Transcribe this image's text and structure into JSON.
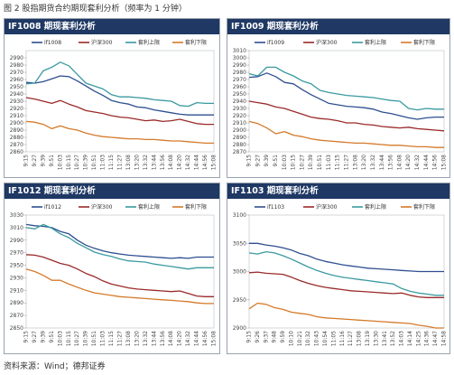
{
  "caption": "图 2 股指期货合约期现套利分析（频率为 1 分钟）",
  "source": "资料来源：Wind；德邦证券",
  "colors": {
    "contract": "#2e4f8f",
    "hs300": "#9a2a2a",
    "upper": "#3a9aa0",
    "lower": "#d47a2a",
    "header": "#1f3864"
  },
  "time_labels": [
    "9:15",
    "9:27",
    "9:39",
    "9:51",
    "10:03",
    "10:15",
    "10:27",
    "10:39",
    "10:51",
    "11:03",
    "11:15",
    "11:27",
    "13:08",
    "13:20",
    "13:32",
    "13:44",
    "13:56",
    "14:08",
    "14:20",
    "14:32",
    "14:44",
    "14:56",
    "15:08"
  ],
  "chart_data": [
    {
      "type": "line",
      "title": "IF1008 期现套利分析",
      "ylim": [
        2860,
        3000
      ],
      "yticks": [
        2860,
        2870,
        2880,
        2890,
        2900,
        2910,
        2920,
        2930,
        2940,
        2950,
        2960,
        2970,
        2980,
        2990
      ],
      "xlabels": [
        "9:15",
        "9:27",
        "9:39",
        "9:51",
        "10:03",
        "10:15",
        "10:27",
        "10:39",
        "10:51",
        "11:03",
        "11:15",
        "11:27",
        "13:08",
        "13:20",
        "13:32",
        "13:44",
        "13:56",
        "14:08",
        "14:20",
        "14:32",
        "14:44",
        "14:56",
        "15:08"
      ],
      "legend": [
        "if1008",
        "沪深300",
        "套利上限",
        "套利下限"
      ],
      "series": [
        {
          "name": "if1008",
          "values": [
            2956,
            2955,
            2957,
            2961,
            2965,
            2964,
            2958,
            2951,
            2944,
            2938,
            2931,
            2928,
            2926,
            2922,
            2921,
            2918,
            2916,
            2914,
            2912,
            2911,
            2911,
            2911,
            2911
          ]
        },
        {
          "name": "沪深300",
          "values": [
            2935,
            2933,
            2930,
            2927,
            2931,
            2926,
            2922,
            2917,
            2915,
            2913,
            2910,
            2908,
            2907,
            2905,
            2903,
            2904,
            2902,
            2903,
            2905,
            2902,
            2899,
            2898,
            2898
          ]
        },
        {
          "name": "套利上限",
          "values": [
            2954,
            2955,
            2972,
            2977,
            2984,
            2979,
            2967,
            2955,
            2951,
            2947,
            2939,
            2936,
            2936,
            2935,
            2934,
            2932,
            2931,
            2930,
            2924,
            2923,
            2928,
            2927,
            2927
          ]
        },
        {
          "name": "套利下限",
          "values": [
            2902,
            2901,
            2898,
            2892,
            2896,
            2892,
            2890,
            2886,
            2883,
            2881,
            2880,
            2879,
            2878,
            2878,
            2877,
            2877,
            2876,
            2875,
            2875,
            2874,
            2873,
            2872,
            2872
          ]
        }
      ]
    },
    {
      "type": "line",
      "title": "IF1009 期现套利分析",
      "ylim": [
        2870,
        3010
      ],
      "yticks": [
        2870,
        2880,
        2890,
        2900,
        2910,
        2920,
        2930,
        2940,
        2950,
        2960,
        2970,
        2980,
        2990,
        3000,
        3010
      ],
      "xlabels": [
        "9:15",
        "9:27",
        "9:39",
        "9:51",
        "10:03",
        "10:15",
        "10:27",
        "10:39",
        "10:51",
        "11:03",
        "11:15",
        "11:27",
        "13:08",
        "13:20",
        "13:32",
        "13:44",
        "13:56",
        "14:08",
        "14:20",
        "14:32",
        "14:44",
        "14:56",
        "15:08"
      ],
      "legend": [
        "if1009",
        "沪深300",
        "套利上限",
        "套利下限"
      ],
      "series": [
        {
          "name": "if1009",
          "values": [
            2973,
            2974,
            2979,
            2974,
            2966,
            2964,
            2956,
            2949,
            2943,
            2937,
            2935,
            2933,
            2932,
            2931,
            2929,
            2925,
            2923,
            2920,
            2917,
            2915,
            2917,
            2918,
            2918
          ]
        },
        {
          "name": "沪深300",
          "values": [
            2940,
            2938,
            2936,
            2932,
            2930,
            2926,
            2922,
            2918,
            2916,
            2915,
            2913,
            2910,
            2910,
            2908,
            2907,
            2905,
            2904,
            2903,
            2904,
            2902,
            2901,
            2900,
            2899
          ]
        },
        {
          "name": "套利上限",
          "values": [
            2978,
            2975,
            2987,
            2987,
            2980,
            2975,
            2968,
            2964,
            2955,
            2952,
            2950,
            2948,
            2947,
            2946,
            2945,
            2943,
            2941,
            2940,
            2930,
            2928,
            2930,
            2929,
            2929
          ]
        },
        {
          "name": "套利下限",
          "values": [
            2912,
            2909,
            2903,
            2895,
            2898,
            2893,
            2891,
            2888,
            2886,
            2885,
            2884,
            2883,
            2882,
            2882,
            2881,
            2880,
            2879,
            2879,
            2878,
            2877,
            2877,
            2876,
            2876
          ]
        }
      ]
    },
    {
      "type": "line",
      "title": "IF1012 期现套利分析",
      "ylim": [
        2850,
        3030
      ],
      "yticks": [
        2850,
        2870,
        2890,
        2910,
        2930,
        2950,
        2970,
        2990,
        3010,
        3030
      ],
      "xlabels": [
        "9:15",
        "9:27",
        "9:39",
        "9:51",
        "10:03",
        "10:15",
        "10:27",
        "10:39",
        "10:51",
        "11:03",
        "11:15",
        "11:27",
        "13:08",
        "13:20",
        "13:32",
        "13:44",
        "13:56",
        "14:08",
        "14:20",
        "14:32",
        "14:44",
        "14:56",
        "15:08"
      ],
      "legend": [
        "if1012",
        "沪深300",
        "套利上限",
        "套利下限"
      ],
      "series": [
        {
          "name": "if1012",
          "values": [
            3015,
            3013,
            3012,
            3010,
            3004,
            3000,
            2990,
            2982,
            2977,
            2973,
            2970,
            2968,
            2966,
            2965,
            2964,
            2963,
            2962,
            2961,
            2962,
            2961,
            2963,
            2963,
            2963
          ]
        },
        {
          "name": "沪深300",
          "values": [
            2967,
            2966,
            2963,
            2958,
            2953,
            2950,
            2944,
            2937,
            2932,
            2925,
            2920,
            2917,
            2914,
            2912,
            2911,
            2910,
            2909,
            2908,
            2909,
            2905,
            2901,
            2900,
            2900
          ]
        },
        {
          "name": "套利上限",
          "values": [
            3010,
            3008,
            3015,
            3009,
            3000,
            2994,
            2985,
            2978,
            2971,
            2967,
            2964,
            2960,
            2957,
            2956,
            2955,
            2952,
            2950,
            2948,
            2946,
            2944,
            2946,
            2946,
            2946
          ]
        },
        {
          "name": "套利下限",
          "values": [
            2944,
            2940,
            2934,
            2926,
            2926,
            2920,
            2915,
            2910,
            2906,
            2904,
            2902,
            2900,
            2899,
            2898,
            2897,
            2896,
            2895,
            2894,
            2893,
            2892,
            2890,
            2889,
            2889
          ]
        }
      ]
    },
    {
      "type": "line",
      "title": "IF1103 期现套利分析",
      "ylim": [
        2900,
        3100
      ],
      "yticks": [
        2900,
        2950,
        3000,
        3050,
        3100
      ],
      "xlabels": [
        "9:15",
        "9:26",
        "9:37",
        "9:48",
        "9:59",
        "10:10",
        "10:21",
        "10:32",
        "10:43",
        "10:54",
        "11:05",
        "11:16",
        "11:27",
        "13:08",
        "13:19",
        "13:30",
        "13:41",
        "13:52",
        "14:03",
        "14:14",
        "14:25",
        "14:36",
        "14:47",
        "14:58"
      ],
      "legend": [
        "if1103",
        "沪深300",
        "套利上限",
        "套利下限"
      ],
      "series": [
        {
          "name": "if1103",
          "values": [
            3050,
            3050,
            3047,
            3045,
            3042,
            3038,
            3032,
            3028,
            3022,
            3018,
            3015,
            3012,
            3010,
            3008,
            3006,
            3005,
            3004,
            3003,
            3002,
            3001,
            3000,
            3000,
            3000,
            3000
          ]
        },
        {
          "name": "沪深300",
          "values": [
            2998,
            2999,
            2997,
            2996,
            2995,
            2990,
            2984,
            2979,
            2975,
            2972,
            2970,
            2968,
            2966,
            2965,
            2964,
            2963,
            2962,
            2961,
            2962,
            2958,
            2955,
            2954,
            2954,
            2954
          ]
        },
        {
          "name": "套利上限",
          "values": [
            3033,
            3031,
            3035,
            3033,
            3028,
            3022,
            3015,
            3008,
            3002,
            2997,
            2993,
            2990,
            2988,
            2986,
            2984,
            2982,
            2980,
            2978,
            2970,
            2965,
            2962,
            2960,
            2958,
            2958
          ]
        },
        {
          "name": "套利下限",
          "values": [
            2934,
            2944,
            2942,
            2936,
            2933,
            2928,
            2926,
            2924,
            2920,
            2918,
            2917,
            2916,
            2915,
            2914,
            2913,
            2912,
            2911,
            2910,
            2909,
            2908,
            2905,
            2903,
            2900,
            2900
          ]
        }
      ]
    }
  ]
}
